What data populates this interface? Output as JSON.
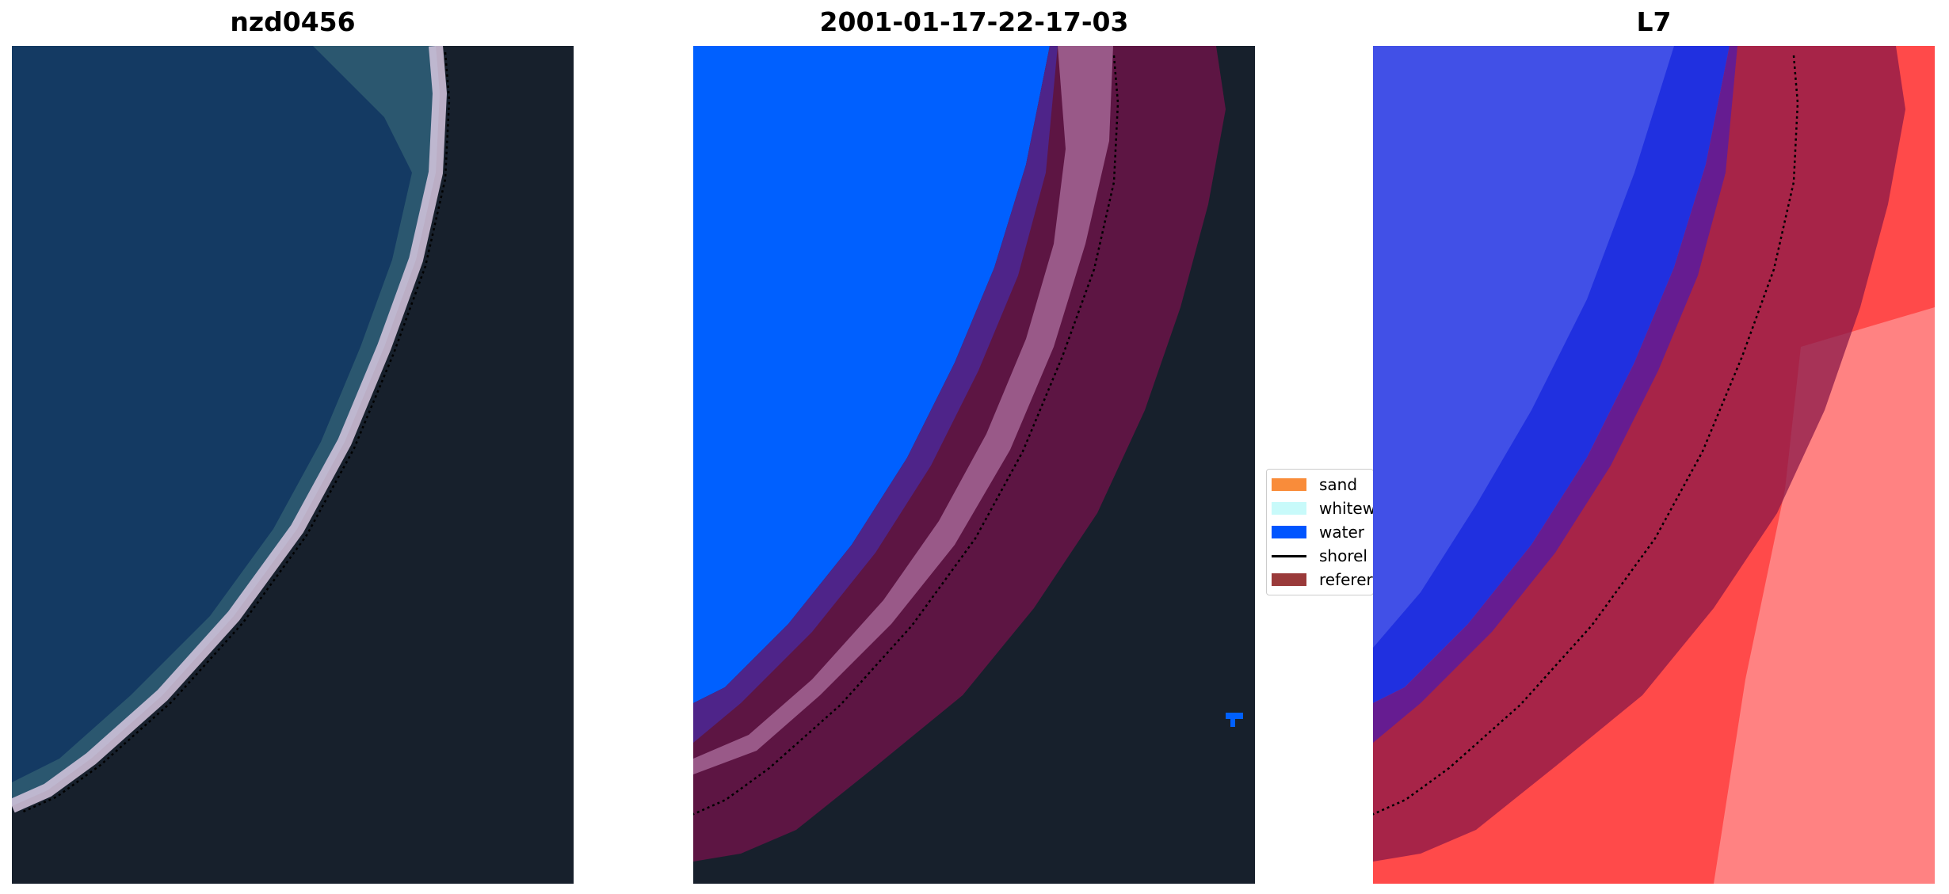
{
  "panels": [
    {
      "title": "nzd0456",
      "kind": "rgb-image"
    },
    {
      "title": "2001-01-17-22-17-03",
      "kind": "classification-overlay"
    },
    {
      "title": "L7",
      "kind": "water-index-image"
    }
  ],
  "legend": {
    "items": [
      {
        "label": "sand",
        "type": "patch",
        "color": "#f98c3a"
      },
      {
        "label": "whitew",
        "type": "patch",
        "color": "#c8fafa"
      },
      {
        "label": "water",
        "type": "patch",
        "color": "#0055ff"
      },
      {
        "label": "shorel",
        "type": "line",
        "color": "#000000"
      },
      {
        "label": "referer",
        "type": "patch",
        "color": "#9a3a3a"
      }
    ]
  },
  "colors": {
    "ocean": "#143a63",
    "land": "#17202c",
    "surf": "#d8c8e0",
    "water_class": "#0060ff",
    "whitewater_class": "#a06090",
    "reference_buffer": "#6a1448",
    "index_water": "#2030e0",
    "index_land": "#ff4a4a",
    "shoreline": "#000000"
  }
}
